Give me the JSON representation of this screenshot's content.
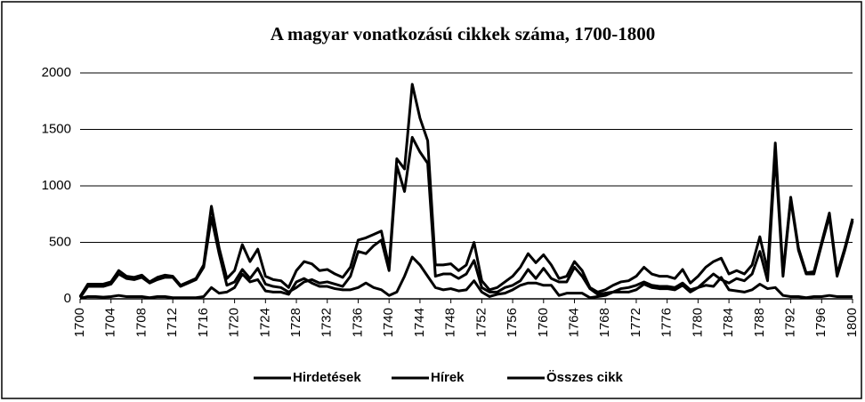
{
  "chart_data": {
    "type": "line",
    "title": "A magyar vonatkozású cikkek száma, 1700-1800",
    "x": [
      1700,
      1701,
      1702,
      1703,
      1704,
      1705,
      1706,
      1707,
      1708,
      1709,
      1710,
      1711,
      1712,
      1713,
      1714,
      1715,
      1716,
      1717,
      1718,
      1719,
      1720,
      1721,
      1722,
      1723,
      1724,
      1725,
      1726,
      1727,
      1728,
      1729,
      1730,
      1731,
      1732,
      1733,
      1734,
      1735,
      1736,
      1737,
      1738,
      1739,
      1740,
      1741,
      1742,
      1743,
      1744,
      1745,
      1746,
      1747,
      1748,
      1749,
      1750,
      1751,
      1752,
      1753,
      1754,
      1755,
      1756,
      1757,
      1758,
      1759,
      1760,
      1761,
      1762,
      1763,
      1764,
      1765,
      1766,
      1767,
      1768,
      1769,
      1770,
      1771,
      1772,
      1773,
      1774,
      1775,
      1776,
      1777,
      1778,
      1779,
      1780,
      1781,
      1782,
      1783,
      1784,
      1785,
      1786,
      1787,
      1788,
      1789,
      1790,
      1791,
      1792,
      1793,
      1794,
      1795,
      1796,
      1797,
      1798,
      1799,
      1800
    ],
    "xlim": [
      1700,
      1800
    ],
    "xticks": [
      1700,
      1704,
      1708,
      1712,
      1716,
      1720,
      1724,
      1728,
      1732,
      1736,
      1740,
      1744,
      1748,
      1752,
      1756,
      1760,
      1764,
      1768,
      1772,
      1776,
      1780,
      1784,
      1788,
      1792,
      1796,
      1800
    ],
    "ylim": [
      0,
      2000
    ],
    "yticks": [
      0,
      500,
      1000,
      1500,
      2000
    ],
    "grid": true,
    "legend": "bottom",
    "series": [
      {
        "name": "Hirdetések",
        "color": "#000000",
        "values": [
          5,
          20,
          20,
          15,
          20,
          30,
          20,
          20,
          20,
          10,
          20,
          20,
          10,
          10,
          10,
          10,
          20,
          100,
          50,
          60,
          100,
          220,
          150,
          170,
          70,
          60,
          60,
          40,
          150,
          180,
          140,
          110,
          110,
          90,
          80,
          80,
          100,
          140,
          100,
          80,
          30,
          60,
          200,
          370,
          300,
          200,
          100,
          80,
          90,
          70,
          80,
          160,
          60,
          20,
          40,
          50,
          80,
          120,
          140,
          140,
          120,
          120,
          30,
          50,
          50,
          50,
          10,
          20,
          30,
          60,
          60,
          60,
          80,
          130,
          100,
          90,
          90,
          80,
          120,
          60,
          100,
          120,
          110,
          190,
          80,
          70,
          60,
          80,
          130,
          90,
          100,
          30,
          20,
          20,
          10,
          20,
          20,
          30,
          20,
          20,
          20
        ]
      },
      {
        "name": "Hírek",
        "color": "#000000",
        "values": [
          10,
          110,
          110,
          110,
          130,
          220,
          180,
          170,
          190,
          140,
          170,
          190,
          190,
          110,
          140,
          170,
          280,
          720,
          400,
          120,
          150,
          260,
          180,
          270,
          130,
          110,
          100,
          60,
          100,
          150,
          170,
          140,
          150,
          130,
          110,
          200,
          420,
          400,
          470,
          520,
          250,
          1180,
          950,
          1430,
          1300,
          1200,
          200,
          220,
          220,
          180,
          220,
          340,
          100,
          60,
          60,
          100,
          120,
          160,
          260,
          180,
          270,
          180,
          150,
          150,
          280,
          200,
          90,
          40,
          50,
          60,
          90,
          100,
          120,
          150,
          120,
          110,
          110,
          100,
          140,
          80,
          100,
          160,
          220,
          170,
          140,
          180,
          160,
          220,
          420,
          160,
          1280,
          200,
          880,
          430,
          220,
          220,
          480,
          730,
          200,
          430,
          690
        ]
      },
      {
        "name": "Összes cikk",
        "color": "#000000",
        "values": [
          20,
          130,
          130,
          130,
          150,
          250,
          200,
          190,
          210,
          150,
          190,
          210,
          200,
          120,
          150,
          180,
          300,
          820,
          450,
          180,
          250,
          480,
          330,
          440,
          200,
          170,
          160,
          100,
          250,
          330,
          310,
          250,
          260,
          220,
          190,
          280,
          520,
          540,
          570,
          600,
          280,
          1240,
          1150,
          1900,
          1600,
          1400,
          300,
          300,
          310,
          250,
          300,
          500,
          160,
          80,
          100,
          150,
          200,
          280,
          400,
          320,
          390,
          300,
          180,
          200,
          330,
          250,
          100,
          60,
          80,
          120,
          150,
          160,
          200,
          280,
          220,
          200,
          200,
          180,
          260,
          140,
          200,
          280,
          330,
          360,
          220,
          250,
          220,
          300,
          550,
          250,
          1380,
          230,
          900,
          450,
          230,
          240,
          500,
          760,
          220,
          450,
          710
        ]
      }
    ]
  }
}
